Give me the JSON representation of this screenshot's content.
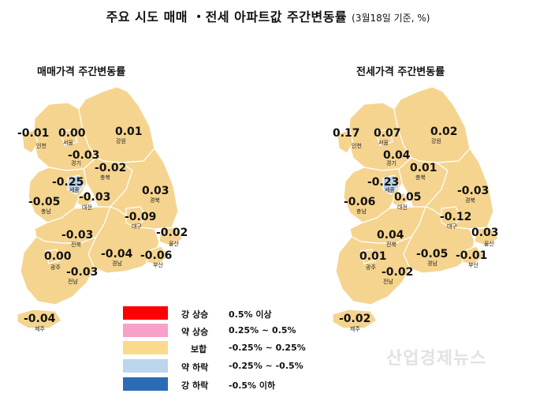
{
  "title": {
    "main": "주요 시도 매매 ・전세 아파트값 주간변동률",
    "sub": "(3월18일 기준, %)"
  },
  "maps": [
    {
      "subtitle": "매매가격 주간변동률",
      "regions": [
        {
          "id": "incheon",
          "name": "인천",
          "value": "-0.01"
        },
        {
          "id": "seoul",
          "name": "서울",
          "value": "0.00"
        },
        {
          "id": "gangwon",
          "name": "강원",
          "value": "0.01"
        },
        {
          "id": "gyeonggi",
          "name": "경기",
          "value": "-0.03"
        },
        {
          "id": "chungbuk",
          "name": "충북",
          "value": "-0.02"
        },
        {
          "id": "sejong",
          "name": "세종",
          "value": "-0.25"
        },
        {
          "id": "chungnam",
          "name": "충남",
          "value": "-0.05"
        },
        {
          "id": "daejeon",
          "name": "대전",
          "value": "-0.03"
        },
        {
          "id": "gyeongbuk",
          "name": "경북",
          "value": "0.03"
        },
        {
          "id": "daegu",
          "name": "대구",
          "value": "-0.09"
        },
        {
          "id": "jeonbuk",
          "name": "전북",
          "value": "-0.03"
        },
        {
          "id": "ulsan",
          "name": "울산",
          "value": "-0.02"
        },
        {
          "id": "gyeongnam",
          "name": "경남",
          "value": "-0.04"
        },
        {
          "id": "busan",
          "name": "부산",
          "value": "-0.06"
        },
        {
          "id": "gwangju",
          "name": "광주",
          "value": "0.00"
        },
        {
          "id": "jeonnam",
          "name": "전남",
          "value": "-0.03"
        },
        {
          "id": "jeju",
          "name": "제주",
          "value": "-0.04"
        }
      ]
    },
    {
      "subtitle": "전세가격 주간변동률",
      "regions": [
        {
          "id": "incheon",
          "name": "인천",
          "value": "0.17"
        },
        {
          "id": "seoul",
          "name": "서울",
          "value": "0.07"
        },
        {
          "id": "gangwon",
          "name": "강원",
          "value": "0.02"
        },
        {
          "id": "gyeonggi",
          "name": "경기",
          "value": "0.04"
        },
        {
          "id": "chungbuk",
          "name": "충북",
          "value": "0.01"
        },
        {
          "id": "sejong",
          "name": "세종",
          "value": "-0.23"
        },
        {
          "id": "chungnam",
          "name": "충남",
          "value": "-0.06"
        },
        {
          "id": "daejeon",
          "name": "대전",
          "value": "0.05"
        },
        {
          "id": "gyeongbuk",
          "name": "경북",
          "value": "-0.03"
        },
        {
          "id": "daegu",
          "name": "대구",
          "value": "-0.12"
        },
        {
          "id": "jeonbuk",
          "name": "전북",
          "value": "0.04"
        },
        {
          "id": "ulsan",
          "name": "울산",
          "value": "0.03"
        },
        {
          "id": "gyeongnam",
          "name": "경남",
          "value": "-0.05"
        },
        {
          "id": "busan",
          "name": "부산",
          "value": "-0.01"
        },
        {
          "id": "gwangju",
          "name": "광주",
          "value": "0.01"
        },
        {
          "id": "jeonnam",
          "name": "전남",
          "value": "-0.02"
        },
        {
          "id": "jeju",
          "name": "제주",
          "value": "-0.02"
        }
      ]
    }
  ],
  "legend": [
    {
      "name": "강 상승",
      "range": "0.5% 이상",
      "color": "#ff0000"
    },
    {
      "name": "약 상승",
      "range": "0.25% ~ 0.5%",
      "color": "#f7a1c8"
    },
    {
      "name": "보합",
      "range": "-0.25% ~ 0.25%",
      "color": "#fbd98d"
    },
    {
      "name": "약 하락",
      "range": "-0.25% ~ -0.5%",
      "color": "#bcd6ee"
    },
    {
      "name": "강 하락",
      "range": "-0.5% 이하",
      "color": "#2e6bb5"
    }
  ],
  "colors": {
    "map_fill": "#f5d48f",
    "map_stroke": "#ffffff",
    "sejong_fill": "#b8cfe6",
    "outline": "#e8c070"
  },
  "watermark": "산업경제뉴스"
}
